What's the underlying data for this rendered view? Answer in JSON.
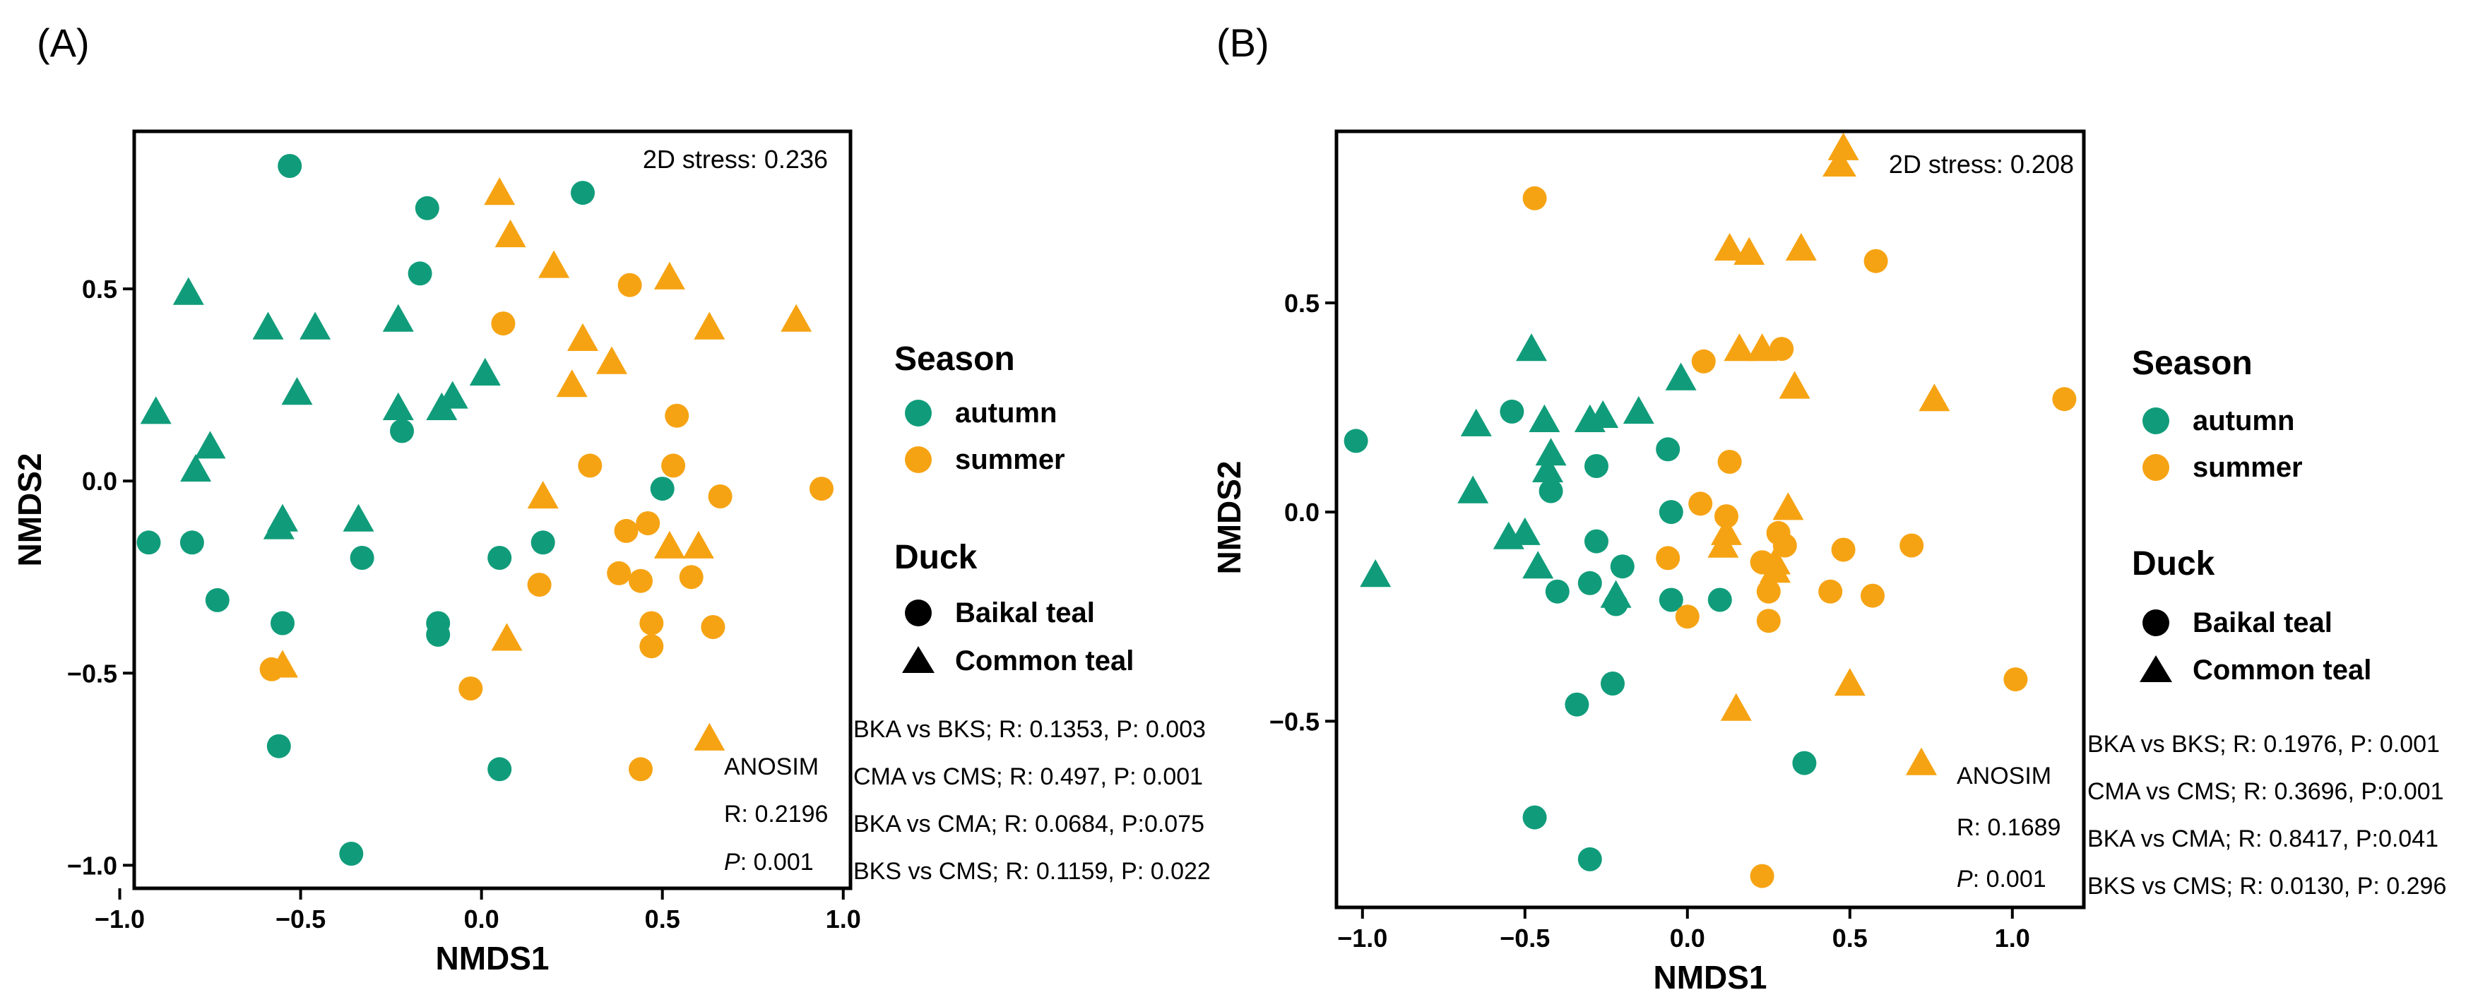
{
  "colors": {
    "autumn": "#109C7A",
    "summer": "#F6A313",
    "axis": "#000000"
  },
  "chart_data": [
    {
      "type": "scatter",
      "panel_label": "(A)",
      "xlabel": "NMDS1",
      "ylabel": "NMDS2",
      "xlim": [
        -0.96,
        1.02
      ],
      "ylim": [
        -1.06,
        0.91
      ],
      "xticks": [
        -1.0,
        -0.5,
        0.0,
        0.5,
        1.0
      ],
      "xtick_labels": [
        "−1.0",
        "−0.5",
        "0.0",
        "0.5",
        "1.0"
      ],
      "yticks": [
        -1.0,
        -0.5,
        0.0,
        0.5
      ],
      "ytick_labels": [
        "−1.0",
        "−0.5",
        "0.0",
        "0.5"
      ],
      "stress_text": "2D stress:  0.236",
      "anosim": {
        "title": "ANOSIM",
        "r": "R: 0.2196",
        "p_label": "P",
        "p_value": ": 0.001"
      },
      "comparisons": [
        "BKA vs BKS; R: 0.1353, P: 0.003",
        "CMA vs CMS; R: 0.497, P: 0.001",
        "BKA vs CMA; R: 0.0684, P:0.075",
        "BKS vs CMS; R: 0.1159, P: 0.022"
      ],
      "legend": {
        "season_title": "Season",
        "seasons": [
          "autumn",
          "summer"
        ],
        "duck_title": "Duck",
        "ducks": [
          "Baikal teal",
          "Common teal"
        ]
      },
      "series": [
        {
          "name": "autumn - Baikal teal",
          "season": "autumn",
          "shape": "circle",
          "points": [
            [
              -0.53,
              0.82
            ],
            [
              0.28,
              0.75
            ],
            [
              -0.15,
              0.71
            ],
            [
              -0.17,
              0.54
            ],
            [
              -0.22,
              0.13
            ],
            [
              -0.92,
              -0.16
            ],
            [
              -0.8,
              -0.16
            ],
            [
              -0.73,
              -0.31
            ],
            [
              -0.55,
              -0.37
            ],
            [
              -0.33,
              -0.2
            ],
            [
              -0.12,
              -0.37
            ],
            [
              -0.12,
              -0.4
            ],
            [
              0.05,
              -0.2
            ],
            [
              0.17,
              -0.16
            ],
            [
              0.5,
              -0.02
            ],
            [
              -0.56,
              -0.69
            ],
            [
              -0.36,
              -0.97
            ],
            [
              0.05,
              -0.75
            ]
          ]
        },
        {
          "name": "autumn - Common teal",
          "season": "autumn",
          "shape": "triangle",
          "points": [
            [
              -0.81,
              0.49
            ],
            [
              -0.59,
              0.4
            ],
            [
              -0.46,
              0.4
            ],
            [
              -0.51,
              0.23
            ],
            [
              -0.23,
              0.42
            ],
            [
              -0.23,
              0.19
            ],
            [
              -0.11,
              0.19
            ],
            [
              -0.08,
              0.22
            ],
            [
              0.01,
              0.28
            ],
            [
              -0.9,
              0.18
            ],
            [
              -0.75,
              0.09
            ],
            [
              -0.79,
              0.03
            ],
            [
              -0.55,
              -0.1
            ],
            [
              -0.56,
              -0.12
            ],
            [
              -0.34,
              -0.1
            ]
          ]
        },
        {
          "name": "summer - Baikal teal",
          "season": "summer",
          "shape": "circle",
          "points": [
            [
              0.06,
              0.41
            ],
            [
              0.41,
              0.51
            ],
            [
              0.3,
              0.04
            ],
            [
              0.54,
              0.17
            ],
            [
              0.53,
              0.04
            ],
            [
              0.4,
              -0.13
            ],
            [
              0.46,
              -0.11
            ],
            [
              0.38,
              -0.24
            ],
            [
              0.44,
              -0.26
            ],
            [
              0.58,
              -0.25
            ],
            [
              0.66,
              -0.04
            ],
            [
              0.64,
              -0.38
            ],
            [
              0.47,
              -0.37
            ],
            [
              0.47,
              -0.43
            ],
            [
              0.16,
              -0.27
            ],
            [
              -0.03,
              -0.54
            ],
            [
              0.44,
              -0.75
            ],
            [
              0.94,
              -0.02
            ],
            [
              -0.58,
              -0.49
            ]
          ]
        },
        {
          "name": "summer - Common teal",
          "season": "summer",
          "shape": "triangle",
          "points": [
            [
              0.05,
              0.75
            ],
            [
              0.08,
              0.64
            ],
            [
              0.2,
              0.56
            ],
            [
              0.52,
              0.53
            ],
            [
              0.87,
              0.42
            ],
            [
              0.63,
              0.4
            ],
            [
              0.28,
              0.37
            ],
            [
              0.36,
              0.31
            ],
            [
              0.25,
              0.25
            ],
            [
              0.17,
              -0.04
            ],
            [
              0.52,
              -0.17
            ],
            [
              0.6,
              -0.17
            ],
            [
              0.07,
              -0.41
            ],
            [
              0.63,
              -0.67
            ],
            [
              -0.55,
              -0.48
            ]
          ]
        }
      ]
    },
    {
      "type": "scatter",
      "panel_label": "(B)",
      "xlabel": "NMDS1",
      "ylabel": "NMDS2",
      "xlim": [
        -1.08,
        1.22
      ],
      "ylim": [
        -0.945,
        0.91
      ],
      "xticks": [
        -1.0,
        -0.5,
        0.0,
        0.5,
        1.0
      ],
      "xtick_labels": [
        "−1.0",
        "−0.5",
        "0.0",
        "0.5",
        "1.0"
      ],
      "yticks": [
        -0.5,
        0.0,
        0.5
      ],
      "ytick_labels": [
        "−0.5",
        "0.0",
        "0.5"
      ],
      "stress_text": "2D stress:  0.208",
      "anosim": {
        "title": "ANOSIM",
        "r": "R: 0.1689",
        "p_label": "P",
        "p_value": ": 0.001"
      },
      "comparisons": [
        "BKA vs BKS; R: 0.1976, P: 0.001",
        "CMA vs CMS; R: 0.3696, P:0.001",
        "BKA vs CMA; R: 0.8417, P:0.041",
        "BKS vs CMS; R: 0.0130, P: 0.296"
      ],
      "legend": {
        "season_title": "Season",
        "seasons": [
          "autumn",
          "summer"
        ],
        "duck_title": "Duck",
        "ducks": [
          "Baikal teal",
          "Common teal"
        ]
      },
      "series": [
        {
          "name": "autumn - Baikal teal",
          "season": "autumn",
          "shape": "circle",
          "points": [
            [
              -1.02,
              0.17
            ],
            [
              -0.54,
              0.24
            ],
            [
              -0.42,
              0.05
            ],
            [
              -0.28,
              0.11
            ],
            [
              -0.06,
              0.15
            ],
            [
              -0.05,
              0.0
            ],
            [
              -0.28,
              -0.07
            ],
            [
              -0.2,
              -0.13
            ],
            [
              -0.4,
              -0.19
            ],
            [
              -0.3,
              -0.17
            ],
            [
              -0.22,
              -0.22
            ],
            [
              -0.05,
              -0.21
            ],
            [
              0.1,
              -0.21
            ],
            [
              -0.34,
              -0.46
            ],
            [
              -0.23,
              -0.41
            ],
            [
              0.36,
              -0.6
            ],
            [
              -0.47,
              -0.73
            ],
            [
              -0.3,
              -0.83
            ]
          ]
        },
        {
          "name": "autumn - Common teal",
          "season": "autumn",
          "shape": "triangle",
          "points": [
            [
              -0.96,
              -0.15
            ],
            [
              -0.65,
              0.21
            ],
            [
              -0.66,
              0.05
            ],
            [
              -0.48,
              0.39
            ],
            [
              -0.44,
              0.22
            ],
            [
              -0.42,
              0.14
            ],
            [
              -0.43,
              0.1
            ],
            [
              -0.3,
              0.22
            ],
            [
              -0.26,
              0.23
            ],
            [
              -0.15,
              0.24
            ],
            [
              -0.02,
              0.32
            ],
            [
              -0.55,
              -0.06
            ],
            [
              -0.5,
              -0.05
            ],
            [
              -0.46,
              -0.13
            ],
            [
              -0.22,
              -0.2
            ]
          ]
        },
        {
          "name": "summer - Baikal teal",
          "season": "summer",
          "shape": "circle",
          "points": [
            [
              -0.47,
              0.75
            ],
            [
              0.58,
              0.6
            ],
            [
              1.16,
              0.27
            ],
            [
              0.05,
              0.36
            ],
            [
              0.29,
              0.39
            ],
            [
              0.13,
              0.12
            ],
            [
              0.04,
              0.02
            ],
            [
              0.12,
              -0.01
            ],
            [
              -0.06,
              -0.11
            ],
            [
              0.28,
              -0.05
            ],
            [
              0.3,
              -0.08
            ],
            [
              0.48,
              -0.09
            ],
            [
              0.69,
              -0.08
            ],
            [
              0.23,
              -0.12
            ],
            [
              0.44,
              -0.19
            ],
            [
              0.57,
              -0.2
            ],
            [
              0.25,
              -0.19
            ],
            [
              0.0,
              -0.25
            ],
            [
              0.25,
              -0.26
            ],
            [
              1.01,
              -0.4
            ],
            [
              0.23,
              -0.87
            ]
          ]
        },
        {
          "name": "summer - Common teal",
          "season": "summer",
          "shape": "triangle",
          "points": [
            [
              0.48,
              0.87
            ],
            [
              0.13,
              0.63
            ],
            [
              0.19,
              0.62
            ],
            [
              0.35,
              0.63
            ],
            [
              0.76,
              0.27
            ],
            [
              0.16,
              0.39
            ],
            [
              0.23,
              0.39
            ],
            [
              0.33,
              0.3
            ],
            [
              0.31,
              0.01
            ],
            [
              0.12,
              -0.05
            ],
            [
              0.11,
              -0.08
            ],
            [
              0.27,
              -0.12
            ],
            [
              0.27,
              -0.14
            ],
            [
              0.15,
              -0.47
            ],
            [
              0.5,
              -0.41
            ],
            [
              0.72,
              -0.6
            ]
          ]
        }
      ]
    }
  ]
}
